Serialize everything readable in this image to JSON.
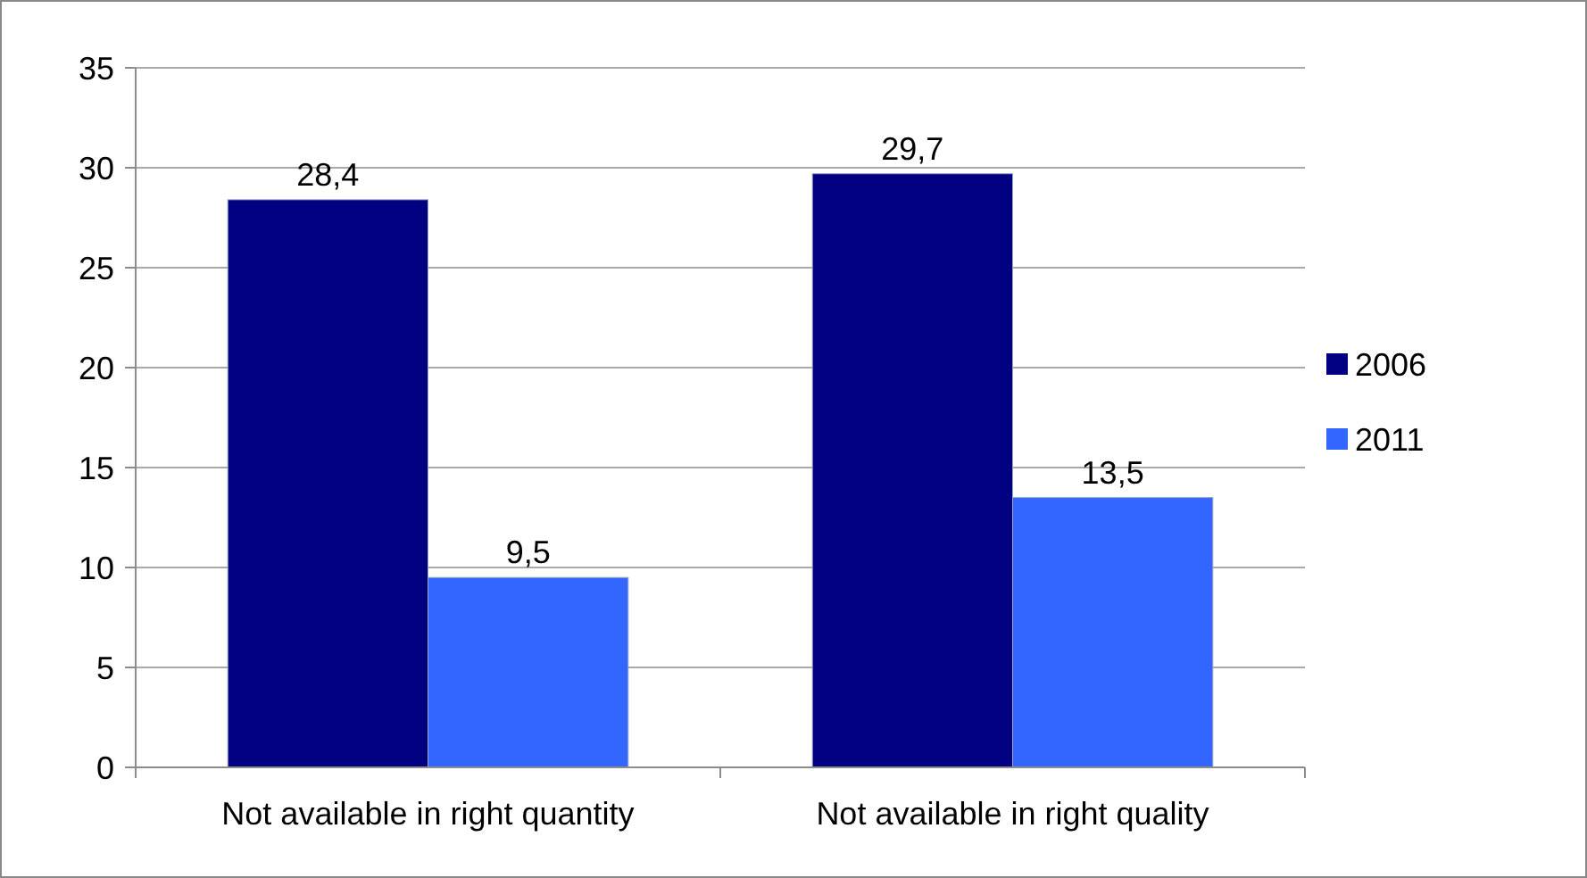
{
  "chart_data": {
    "type": "bar",
    "categories": [
      "Not available in right quantity",
      "Not available in right quality"
    ],
    "series": [
      {
        "name": "2006",
        "color": "#000080",
        "values": [
          28.4,
          29.7
        ],
        "value_labels": [
          "28,4",
          "29,7"
        ]
      },
      {
        "name": "2011",
        "color": "#3366ff",
        "values": [
          9.5,
          13.5
        ],
        "value_labels": [
          "9,5",
          "13,5"
        ]
      }
    ],
    "ylim": [
      0,
      35
    ],
    "yticks": [
      0,
      5,
      10,
      15,
      20,
      25,
      30,
      35
    ],
    "grid": "y",
    "legend": "right"
  }
}
